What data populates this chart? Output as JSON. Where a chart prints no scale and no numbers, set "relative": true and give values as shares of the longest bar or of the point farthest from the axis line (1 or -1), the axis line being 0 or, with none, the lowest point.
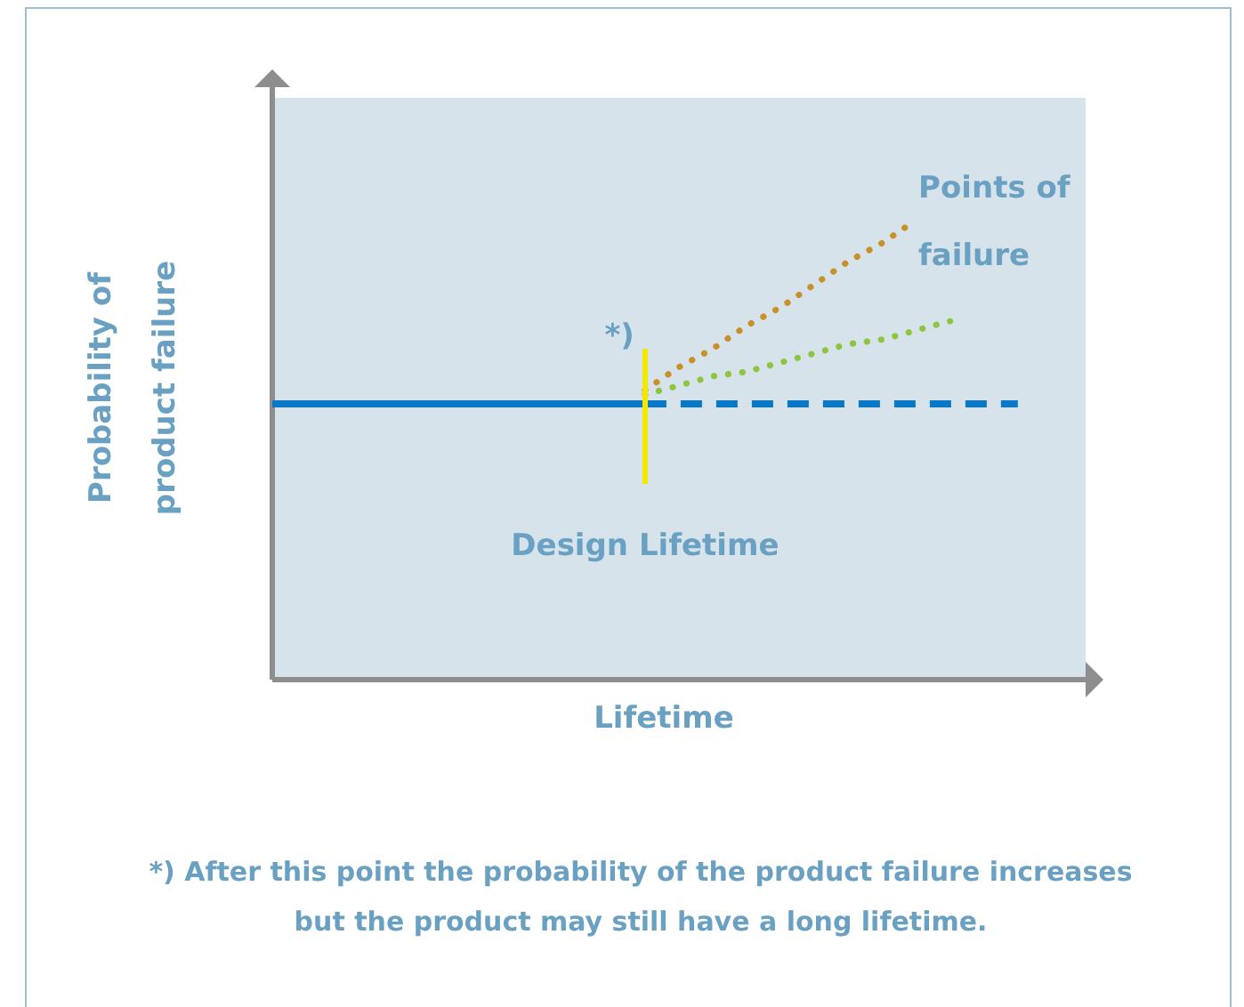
{
  "chart_data": {
    "type": "line",
    "relative": true,
    "xlabel": "Lifetime",
    "ylabel": "Probability of product failure",
    "legend": false,
    "marker": "none",
    "categories": [
      null,
      null,
      null,
      null,
      null,
      null,
      null,
      null,
      null,
      null,
      null,
      null,
      null,
      null,
      null,
      null,
      null,
      null,
      null,
      null,
      null,
      null,
      null,
      null,
      null
    ],
    "series": [
      {
        "color": "#0a78c4",
        "values": [
          0.6,
          0.6,
          0.6,
          0.6,
          0.6,
          0.6,
          0.6,
          0.6,
          0.6,
          0.6,
          0.6,
          0.6,
          null,
          null,
          null,
          null,
          null,
          null,
          null,
          null,
          null,
          null,
          null,
          null,
          null
        ],
        "line_style": "solid"
      },
      {
        "color": "#0a78c4",
        "values": [
          null,
          null,
          null,
          null,
          null,
          null,
          null,
          null,
          null,
          null,
          null,
          0.6,
          0.6,
          0.6,
          0.6,
          0.6,
          0.6,
          0.6,
          0.6,
          0.6,
          0.6,
          0.6,
          0.6,
          null,
          null
        ],
        "line_style": "dashed"
      },
      {
        "color": "#c8902a",
        "values": [
          null,
          null,
          null,
          null,
          null,
          null,
          null,
          null,
          null,
          null,
          null,
          0.63,
          0.68,
          0.72,
          0.77,
          0.81,
          0.86,
          0.91,
          0.95,
          1.0,
          null,
          null,
          null,
          null,
          null
        ],
        "line_style": "dotted"
      },
      {
        "color": "#8cc63f",
        "values": [
          null,
          null,
          null,
          null,
          null,
          null,
          null,
          null,
          null,
          null,
          null,
          0.62,
          0.64,
          0.66,
          0.67,
          0.69,
          0.71,
          0.73,
          0.74,
          0.76,
          0.78,
          null,
          null,
          null,
          null
        ],
        "line_style": "dotted"
      }
    ],
    "annotations": [
      "*)",
      "Points of failure",
      "Design Lifetime",
      "*) After this point the probability of the product failure increases but the product may still have a long lifetime."
    ]
  }
}
